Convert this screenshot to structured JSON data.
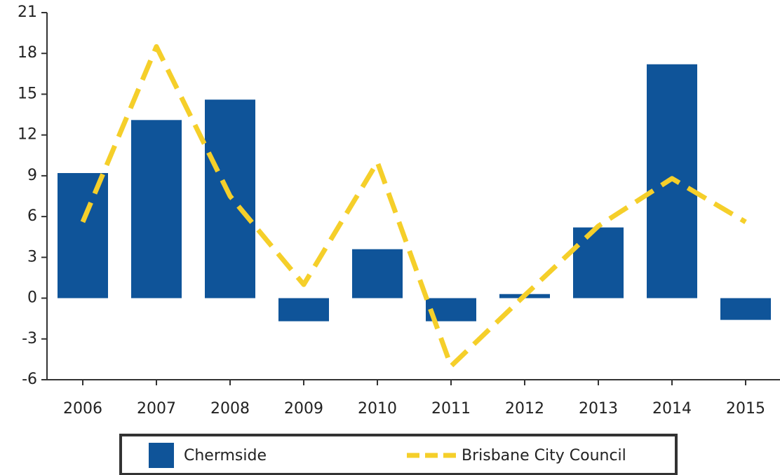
{
  "chart_data": {
    "type": "bar",
    "categories": [
      "2006",
      "2007",
      "2008",
      "2009",
      "2010",
      "2011",
      "2012",
      "2013",
      "2014",
      "2015"
    ],
    "series": [
      {
        "name": "Chermside",
        "type": "bar",
        "color": "#0f5499",
        "values": [
          9.2,
          13.1,
          14.6,
          -1.7,
          3.6,
          -1.7,
          0.3,
          5.2,
          17.2,
          -1.6
        ]
      },
      {
        "name": "Brisbane City Council",
        "type": "line",
        "color": "#f5cf2a",
        "values": [
          5.6,
          18.5,
          7.5,
          1.0,
          10.0,
          -5.0,
          0.2,
          5.3,
          8.8,
          5.6
        ]
      }
    ],
    "ylim": [
      -6,
      21
    ],
    "yticks": [
      -6,
      -3,
      0,
      3,
      6,
      9,
      12,
      15,
      18,
      21
    ],
    "legend": "bottom"
  }
}
